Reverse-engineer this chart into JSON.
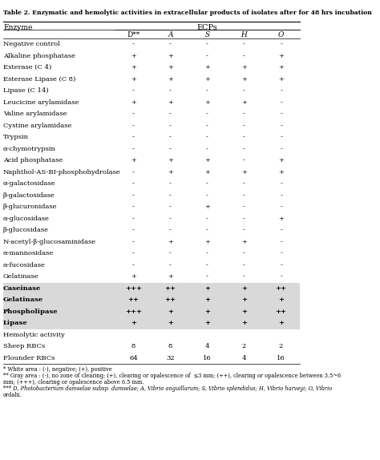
{
  "title": "Table 2. Enzymatic and hemolytic activities in extracellular products of isolates after for 48 hrs incubation",
  "header_ecps": "ECPs",
  "col_headers": [
    "D**",
    "A",
    "S",
    "H",
    "O"
  ],
  "enzyme_col_header": "Enzyme",
  "rows": [
    {
      "enzyme": "Negative control",
      "values": [
        "-",
        "-",
        "-",
        "-",
        "-"
      ],
      "gray": false,
      "bold": false
    },
    {
      "enzyme": "Alkaline phosphatase",
      "values": [
        "+",
        "+",
        "-",
        "-",
        "+"
      ],
      "gray": false,
      "bold": false
    },
    {
      "enzyme": "Esterase (C 4)",
      "values": [
        "+",
        "+",
        "+",
        "+",
        "+"
      ],
      "gray": false,
      "bold": false
    },
    {
      "enzyme": "Esterase Lipase (C 8)",
      "values": [
        "+",
        "+",
        "+",
        "+",
        "+"
      ],
      "gray": false,
      "bold": false
    },
    {
      "enzyme": "Lipase (C 14)",
      "values": [
        "-",
        "-",
        "-",
        "-",
        "-"
      ],
      "gray": false,
      "bold": false
    },
    {
      "enzyme": "Leucicine arylamidase",
      "values": [
        "+",
        "+",
        "+",
        "+",
        "-"
      ],
      "gray": false,
      "bold": false
    },
    {
      "enzyme": "Valine arylamidase",
      "values": [
        "-",
        "-",
        "-",
        "-",
        "-"
      ],
      "gray": false,
      "bold": false
    },
    {
      "enzyme": "Cystine arylamidase",
      "values": [
        "-",
        "-",
        "-",
        "-",
        "-"
      ],
      "gray": false,
      "bold": false
    },
    {
      "enzyme": "Trypsin",
      "values": [
        "-",
        "-",
        "-",
        "-",
        "-"
      ],
      "gray": false,
      "bold": false
    },
    {
      "enzyme": "α-chymotrypsin",
      "values": [
        "-",
        "-",
        "-",
        "-",
        "-"
      ],
      "gray": false,
      "bold": false
    },
    {
      "enzyme": "Acid phosphatase",
      "values": [
        "+",
        "+",
        "+",
        "-",
        "+"
      ],
      "gray": false,
      "bold": false
    },
    {
      "enzyme": "Naphthol-AS-BI-phosphohydrolase",
      "values": [
        "-",
        "+",
        "+",
        "+",
        "+"
      ],
      "gray": false,
      "bold": false
    },
    {
      "enzyme": "α-galactosidase",
      "values": [
        "-",
        "-",
        "-",
        "-",
        "-"
      ],
      "gray": false,
      "bold": false
    },
    {
      "enzyme": "β-galactosidase",
      "values": [
        "-",
        "-",
        "-",
        "-",
        "-"
      ],
      "gray": false,
      "bold": false
    },
    {
      "enzyme": "β-glucuronidase",
      "values": [
        "-",
        "-",
        "+",
        "-",
        "-"
      ],
      "gray": false,
      "bold": false
    },
    {
      "enzyme": "α-glucosidase",
      "values": [
        "-",
        "-",
        "-",
        "-",
        "+"
      ],
      "gray": false,
      "bold": false
    },
    {
      "enzyme": "β-glucosidase",
      "values": [
        "-",
        "-",
        "-",
        "-",
        "-"
      ],
      "gray": false,
      "bold": false
    },
    {
      "enzyme": "N-acetyl-β-glucosaminidase",
      "values": [
        "-",
        "+",
        "+",
        "+",
        "-"
      ],
      "gray": false,
      "bold": false
    },
    {
      "enzyme": "α-mannosidase",
      "values": [
        "-",
        "-",
        "-",
        "-",
        "-"
      ],
      "gray": false,
      "bold": false
    },
    {
      "enzyme": "α-fucosidase",
      "values": [
        "-",
        "-",
        "-",
        "-",
        "-"
      ],
      "gray": false,
      "bold": false
    },
    {
      "enzyme": "Gelatinase",
      "values": [
        "+",
        "+",
        "-",
        "-",
        "-"
      ],
      "gray": false,
      "bold": false
    },
    {
      "enzyme": "Caseinase",
      "values": [
        "+++",
        "++",
        "+",
        "+",
        "++"
      ],
      "gray": true,
      "bold": true
    },
    {
      "enzyme": "Gelatinase",
      "values": [
        "++",
        "++",
        "+",
        "+",
        "+"
      ],
      "gray": true,
      "bold": true
    },
    {
      "enzyme": "Phospholipase",
      "values": [
        "+++",
        "+",
        "+",
        "+",
        "++"
      ],
      "gray": true,
      "bold": true
    },
    {
      "enzyme": "Lipase",
      "values": [
        "+",
        "+",
        "+",
        "+",
        "+"
      ],
      "gray": true,
      "bold": true
    },
    {
      "enzyme": "Hemolytic activity",
      "values": [
        "",
        "",
        "",
        "",
        ""
      ],
      "gray": false,
      "bold": false,
      "section": true
    },
    {
      "enzyme": "Sheep RBCs",
      "values": [
        "8",
        "8",
        "4",
        "2",
        "2"
      ],
      "gray": false,
      "bold": false
    },
    {
      "enzyme": "Flounder RBCs",
      "values": [
        "64",
        "32",
        "16",
        "4",
        "16"
      ],
      "gray": false,
      "bold": false
    }
  ],
  "footnotes": [
    "* White area : (-), negative; (+), positive",
    "** Gray area : (-), no zone of clearing; (+), clearing or opalescence of  ≤3 mm; (++), clearing or opalescence between 3.5~6",
    "mm; (+++), clearing or opalescence above 6.5 mm.",
    "*** D, Photobacterium damselae subsp. damselae; A, Vibrio anguillarum; S, Vibrio splendidus; H, Vibrio harveyi; O, Vibrio",
    "ordalii."
  ],
  "bg_color": "#ffffff",
  "gray_color": "#d9d9d9",
  "header_gray": "#e8e8e8"
}
